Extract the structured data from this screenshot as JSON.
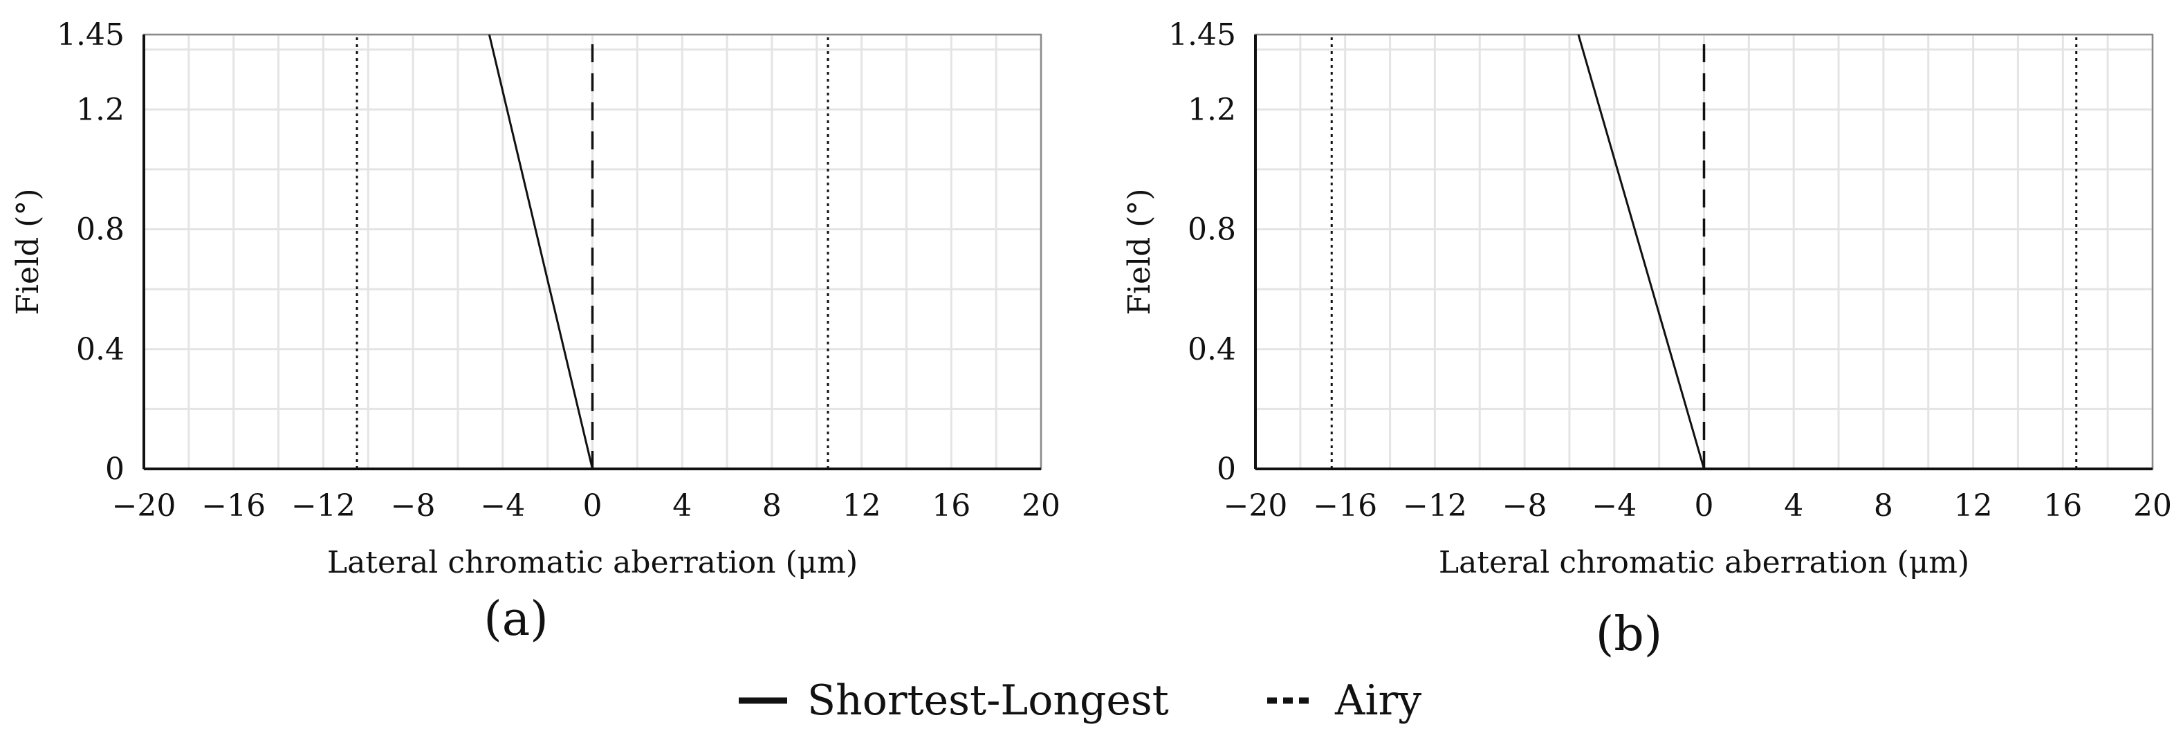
{
  "legend": {
    "items": [
      {
        "label": "Shortest-Longest",
        "style": "solid"
      },
      {
        "label": "Airy",
        "style": "dotted"
      }
    ],
    "placement": "bottom-center"
  },
  "colors": {
    "line": "#111111",
    "grid": "#e4e4e4",
    "frame": "#8a8a8a"
  },
  "chart_data": [
    {
      "type": "line",
      "panel_label": "(a)",
      "xlabel": "Lateral chromatic aberration (μm)",
      "ylabel": "Field (°)",
      "xlim": [
        -20,
        20
      ],
      "ylim": [
        0,
        1.45
      ],
      "x_ticks": [
        -20,
        -16,
        -12,
        -8,
        -4,
        0,
        4,
        8,
        12,
        16,
        20
      ],
      "x_tick_labels": [
        "−20",
        "−16",
        "−12",
        "−8",
        "−4",
        "0",
        "4",
        "8",
        "12",
        "16",
        "20"
      ],
      "y_ticks": [
        0,
        0.4,
        0.8,
        1.2,
        1.45
      ],
      "y_tick_labels": [
        "0",
        "0.4",
        "0.8",
        "1.2",
        "1.45"
      ],
      "grid": true,
      "series": [
        {
          "name": "Shortest-Longest",
          "style": "solid",
          "x": [
            0,
            -4.6
          ],
          "y": [
            0,
            1.45
          ]
        },
        {
          "name": "Airy",
          "style": "dotted",
          "x": [
            -10.5,
            -10.5
          ],
          "y": [
            0,
            1.45
          ]
        },
        {
          "name": "Airy",
          "style": "dotted",
          "x": [
            10.5,
            10.5
          ],
          "y": [
            0,
            1.45
          ]
        },
        {
          "style": "dashed",
          "x": [
            0,
            0
          ],
          "y": [
            0,
            1.45
          ]
        }
      ]
    },
    {
      "type": "line",
      "panel_label": "(b)",
      "xlabel": "Lateral chromatic aberration (μm)",
      "ylabel": "Field (°)",
      "xlim": [
        -20,
        20
      ],
      "ylim": [
        0,
        1.45
      ],
      "x_ticks": [
        -20,
        -16,
        -12,
        -8,
        -4,
        0,
        4,
        8,
        12,
        16,
        20
      ],
      "x_tick_labels": [
        "−20",
        "−16",
        "−12",
        "−8",
        "−4",
        "0",
        "4",
        "8",
        "12",
        "16",
        "20"
      ],
      "y_ticks": [
        0,
        0.4,
        0.8,
        1.2,
        1.45
      ],
      "y_tick_labels": [
        "0",
        "0.4",
        "0.8",
        "1.2",
        "1.45"
      ],
      "grid": true,
      "series": [
        {
          "name": "Shortest-Longest",
          "style": "solid",
          "x": [
            0,
            -5.6
          ],
          "y": [
            0,
            1.45
          ]
        },
        {
          "name": "Airy",
          "style": "dotted",
          "x": [
            -16.6,
            -16.6
          ],
          "y": [
            0,
            1.45
          ]
        },
        {
          "name": "Airy",
          "style": "dotted",
          "x": [
            16.6,
            16.6
          ],
          "y": [
            0,
            1.45
          ]
        },
        {
          "style": "dashed",
          "x": [
            0,
            0
          ],
          "y": [
            0,
            1.45
          ]
        }
      ]
    }
  ]
}
